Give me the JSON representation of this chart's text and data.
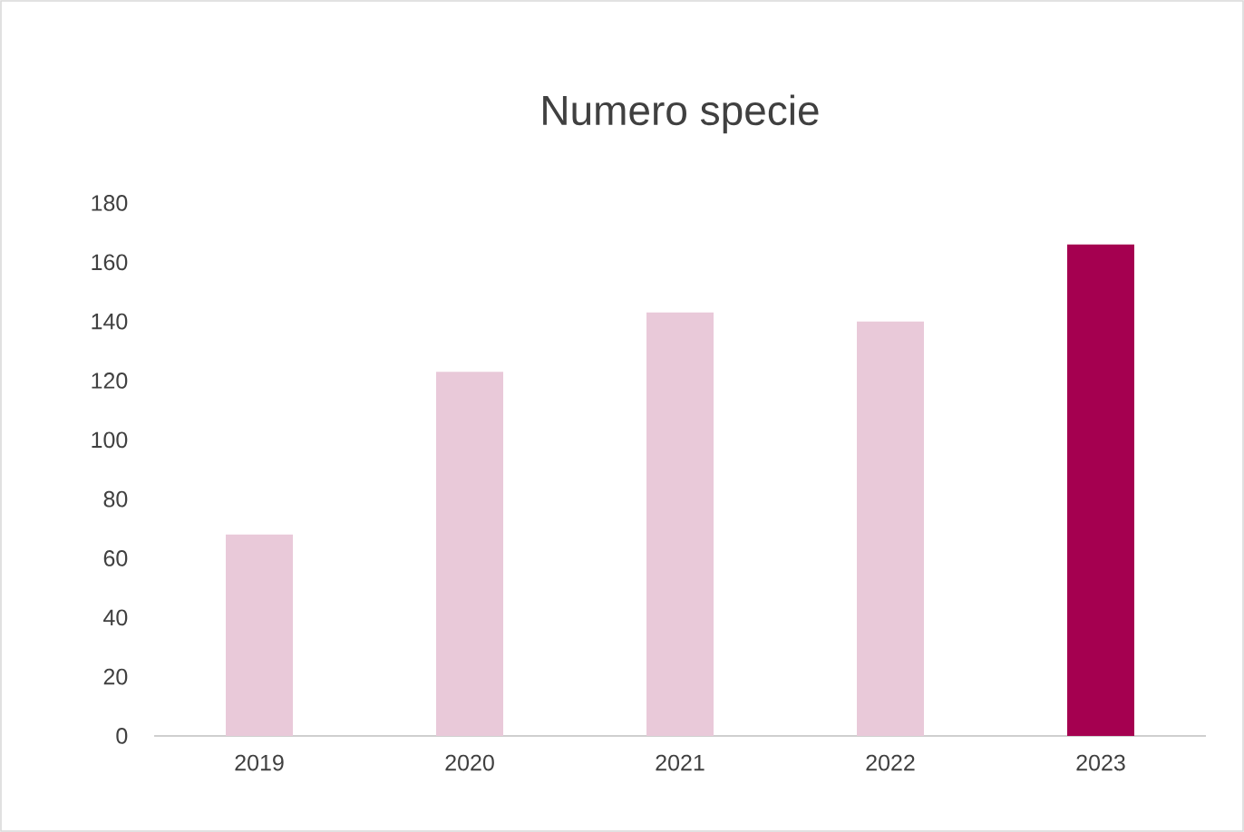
{
  "chart_data": {
    "type": "bar",
    "title": "Numero specie",
    "categories": [
      "2019",
      "2020",
      "2021",
      "2022",
      "2023"
    ],
    "values": [
      68,
      123,
      143,
      140,
      166
    ],
    "colors": [
      "#e9c9d9",
      "#e9c9d9",
      "#e9c9d9",
      "#e9c9d9",
      "#a50050"
    ],
    "ylim": [
      0,
      180
    ],
    "yticks": [
      0,
      20,
      40,
      60,
      80,
      100,
      120,
      140,
      160,
      180
    ],
    "grid": false
  }
}
